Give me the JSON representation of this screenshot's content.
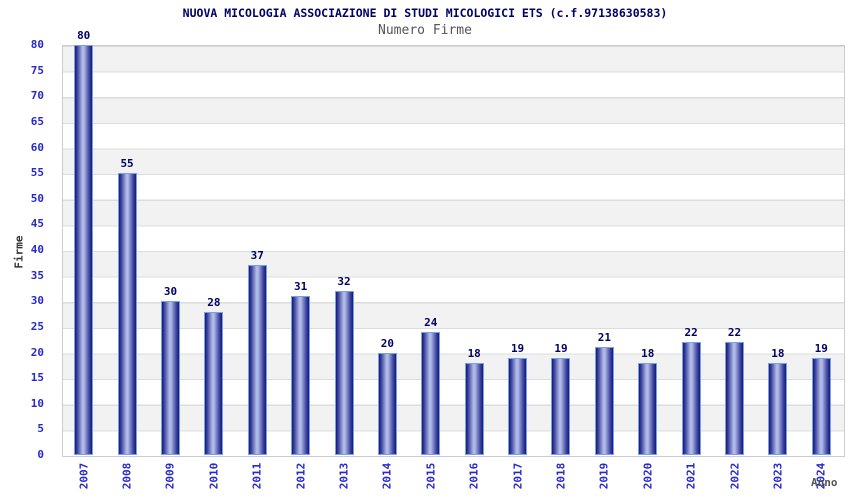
{
  "chart_data": {
    "type": "bar",
    "title": "NUOVA MICOLOGIA ASSOCIAZIONE DI STUDI MICOLOGICI ETS (c.f.97138630583)",
    "subtitle": "Numero Firme",
    "xlabel": "Anno",
    "ylabel": "Firme",
    "categories": [
      "2007",
      "2008",
      "2009",
      "2010",
      "2011",
      "2012",
      "2013",
      "2014",
      "2015",
      "2016",
      "2017",
      "2018",
      "2019",
      "2020",
      "2021",
      "2022",
      "2023",
      "2024"
    ],
    "values": [
      80,
      55,
      30,
      28,
      37,
      31,
      32,
      20,
      24,
      18,
      19,
      19,
      21,
      18,
      22,
      22,
      18,
      19
    ],
    "ylim": [
      0,
      80
    ],
    "ytick_step": 5,
    "grid": "horizontal-bands-every-5",
    "legend": "none",
    "colors": {
      "title": "#000066",
      "subtitle": "#555555",
      "tick_label": "#2828cc",
      "value_label": "#000066",
      "y_axis_title": "#333333",
      "x_axis_title": "#555555",
      "bar_dark": "#181875",
      "bar_mid": "#3d45a2",
      "bar_light": "#b2bbe6",
      "bar_border": "#76a3e6",
      "band_gray": "#f2f2f2",
      "band_white": "#ffffff",
      "grid_line": "#dcdcdc",
      "plot_border": "#cccccc"
    }
  }
}
